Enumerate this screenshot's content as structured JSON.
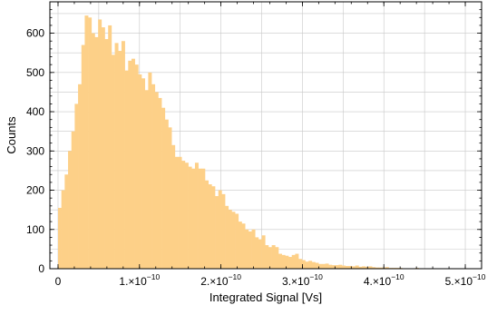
{
  "chart_data": {
    "type": "bar",
    "title": "",
    "xlabel": "Integrated Signal [Vs]",
    "ylabel": "Counts",
    "xlim": [
      -1e-11,
      5.2e-10
    ],
    "ylim": [
      0,
      680
    ],
    "grid": true,
    "bar_color": "#fdd088",
    "bin_width": 4.1e-12,
    "x": [
      0.0,
      4.1e-12,
      8.2e-12,
      1.23e-11,
      1.64e-11,
      2.05e-11,
      2.46e-11,
      2.87e-11,
      3.28e-11,
      3.69e-11,
      4.1e-11,
      4.51e-11,
      4.92e-11,
      5.33e-11,
      5.74e-11,
      6.15e-11,
      6.56e-11,
      6.97e-11,
      7.38e-11,
      7.79e-11,
      8.2e-11,
      8.61e-11,
      9.02e-11,
      9.43e-11,
      9.84e-11,
      1.025e-10,
      1.066e-10,
      1.107e-10,
      1.148e-10,
      1.189e-10,
      1.23e-10,
      1.271e-10,
      1.312e-10,
      1.353e-10,
      1.394e-10,
      1.435e-10,
      1.476e-10,
      1.517e-10,
      1.558e-10,
      1.599e-10,
      1.64e-10,
      1.681e-10,
      1.722e-10,
      1.763e-10,
      1.804e-10,
      1.845e-10,
      1.886e-10,
      1.927e-10,
      1.968e-10,
      2.009e-10,
      2.05e-10,
      2.091e-10,
      2.132e-10,
      2.173e-10,
      2.214e-10,
      2.255e-10,
      2.296e-10,
      2.337e-10,
      2.378e-10,
      2.419e-10,
      2.46e-10,
      2.501e-10,
      2.542e-10,
      2.583e-10,
      2.624e-10,
      2.665e-10,
      2.706e-10,
      2.747e-10,
      2.788e-10,
      2.829e-10,
      2.87e-10,
      2.911e-10,
      2.952e-10,
      2.993e-10,
      3.034e-10,
      3.075e-10,
      3.116e-10,
      3.157e-10,
      3.198e-10,
      3.239e-10,
      3.28e-10,
      3.321e-10,
      3.362e-10,
      3.403e-10,
      3.444e-10,
      3.485e-10,
      3.526e-10,
      3.567e-10,
      3.608e-10,
      3.649e-10,
      3.69e-10,
      3.731e-10,
      3.772e-10,
      3.813e-10,
      3.854e-10,
      3.895e-10,
      3.936e-10,
      3.977e-10,
      4.018e-10,
      4.059e-10,
      4.1e-10,
      4.141e-10,
      4.182e-10,
      4.223e-10,
      4.264e-10,
      4.305e-10,
      4.346e-10,
      4.387e-10,
      4.428e-10,
      4.469e-10,
      4.51e-10,
      4.551e-10,
      4.592e-10,
      4.633e-10,
      4.674e-10,
      4.715e-10,
      4.756e-10,
      4.797e-10,
      4.838e-10,
      4.879e-10
    ],
    "values": [
      155,
      200,
      240,
      300,
      350,
      420,
      470,
      570,
      645,
      640,
      600,
      590,
      635,
      615,
      585,
      620,
      545,
      575,
      555,
      580,
      505,
      530,
      535,
      520,
      495,
      485,
      455,
      500,
      470,
      450,
      435,
      410,
      380,
      360,
      315,
      285,
      285,
      275,
      270,
      260,
      255,
      270,
      255,
      255,
      225,
      215,
      210,
      185,
      200,
      190,
      160,
      150,
      145,
      140,
      120,
      115,
      100,
      95,
      100,
      80,
      75,
      85,
      60,
      55,
      60,
      55,
      38,
      35,
      33,
      30,
      35,
      38,
      25,
      22,
      18,
      20,
      17,
      15,
      12,
      12,
      13,
      10,
      9,
      9,
      10,
      8,
      7,
      7,
      6,
      8,
      5,
      6,
      5,
      6,
      4,
      3,
      3,
      3,
      4,
      2,
      2,
      2,
      2,
      1,
      1,
      1,
      1,
      2,
      1,
      1,
      1,
      1,
      1,
      1,
      1,
      1,
      0,
      1,
      0,
      1
    ],
    "x_ticks": [
      {
        "value": 0,
        "label": "0"
      },
      {
        "value": 1e-10,
        "label": "1.×10",
        "exp": "−10"
      },
      {
        "value": 2e-10,
        "label": "2.×10",
        "exp": "−10"
      },
      {
        "value": 3e-10,
        "label": "3.×10",
        "exp": "−10"
      },
      {
        "value": 4e-10,
        "label": "4.×10",
        "exp": "−10"
      },
      {
        "value": 5e-10,
        "label": "5.×10",
        "exp": "−10"
      }
    ],
    "y_ticks": [
      0,
      100,
      200,
      300,
      400,
      500,
      600
    ]
  }
}
